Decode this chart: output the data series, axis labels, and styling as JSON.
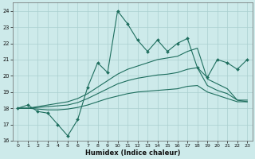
{
  "xlabel": "Humidex (Indice chaleur)",
  "bg_color": "#cdeaea",
  "grid_color": "#aacfcf",
  "line_color": "#1e6e5e",
  "xlim": [
    -0.5,
    23.5
  ],
  "ylim": [
    16,
    24.5
  ],
  "xticks": [
    0,
    1,
    2,
    3,
    4,
    5,
    6,
    7,
    8,
    9,
    10,
    11,
    12,
    13,
    14,
    15,
    16,
    17,
    18,
    19,
    20,
    21,
    22,
    23
  ],
  "yticks": [
    16,
    17,
    18,
    19,
    20,
    21,
    22,
    23,
    24
  ],
  "x_vals": [
    0,
    1,
    2,
    3,
    4,
    5,
    6,
    7,
    8,
    9,
    10,
    11,
    12,
    13,
    14,
    15,
    16,
    17,
    18,
    19,
    20,
    21,
    22,
    23
  ],
  "line_main": [
    18.0,
    18.2,
    17.8,
    17.7,
    17.0,
    16.3,
    17.3,
    19.3,
    20.8,
    20.2,
    24.0,
    23.2,
    22.2,
    21.5,
    22.2,
    21.5,
    22.0,
    22.3,
    20.5,
    19.9,
    21.0,
    20.8,
    20.4,
    21.0
  ],
  "line_upper": [
    18.0,
    18.0,
    18.1,
    18.2,
    18.3,
    18.4,
    18.6,
    18.9,
    19.3,
    19.7,
    20.1,
    20.4,
    20.6,
    20.8,
    21.0,
    21.1,
    21.2,
    21.5,
    21.7,
    19.8,
    19.5,
    19.2,
    18.5,
    18.5
  ],
  "line_mid": [
    18.0,
    18.0,
    18.05,
    18.1,
    18.15,
    18.2,
    18.35,
    18.6,
    18.9,
    19.2,
    19.5,
    19.7,
    19.85,
    19.95,
    20.05,
    20.1,
    20.2,
    20.4,
    20.5,
    19.4,
    19.1,
    18.9,
    18.5,
    18.4
  ],
  "line_lower": [
    18.0,
    18.0,
    17.95,
    17.9,
    17.9,
    17.95,
    18.05,
    18.2,
    18.4,
    18.6,
    18.75,
    18.9,
    19.0,
    19.05,
    19.1,
    19.15,
    19.2,
    19.35,
    19.4,
    19.0,
    18.8,
    18.6,
    18.4,
    18.4
  ]
}
